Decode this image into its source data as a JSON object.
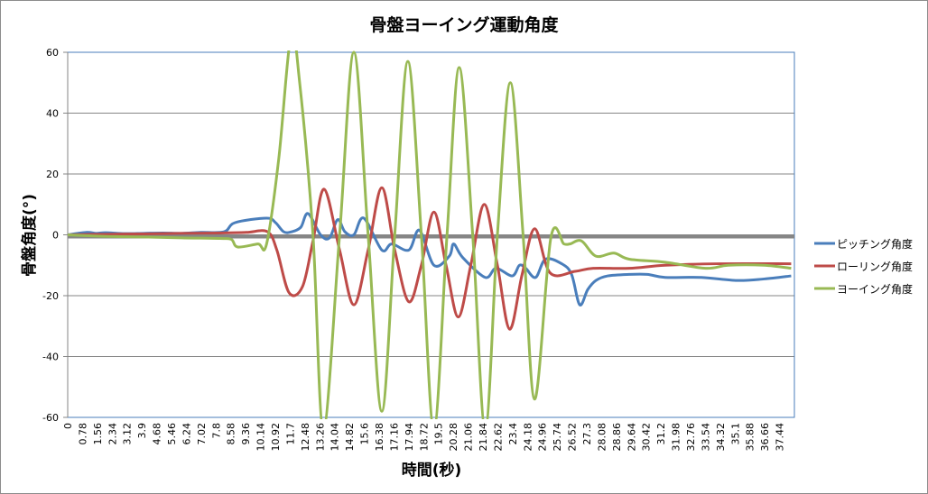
{
  "chart_data": {
    "type": "line",
    "title": "骨盤ヨーイング運動角度",
    "xlabel": "時間(秒)",
    "ylabel": "骨盤角度(°)",
    "ylim": [
      -60,
      60
    ],
    "yticks": [
      -60,
      -40,
      -20,
      0,
      20,
      40,
      60
    ],
    "xlim": [
      0,
      38.22
    ],
    "xtick_labels": [
      "0",
      "0.78",
      "1.56",
      "2.34",
      "3.12",
      "3.9",
      "4.68",
      "5.46",
      "6.24",
      "7.02",
      "7.8",
      "8.58",
      "9.36",
      "10.14",
      "10.92",
      "11.7",
      "12.48",
      "13.26",
      "14.04",
      "14.82",
      "15.6",
      "16.38",
      "17.16",
      "17.94",
      "18.72",
      "19.5",
      "20.28",
      "21.06",
      "21.84",
      "22.62",
      "23.4",
      "24.18",
      "24.96",
      "25.74",
      "26.52",
      "27.3",
      "28.08",
      "28.86",
      "29.64",
      "30.42",
      "31.2",
      "31.98",
      "32.76",
      "33.54",
      "34.32",
      "35.1",
      "35.88",
      "36.66",
      "37.44"
    ],
    "grid": true,
    "legend": "right",
    "series": [
      {
        "name": "ピッチング角度",
        "color": "#4a7ebb",
        "x": [
          0,
          1,
          1.5,
          2,
          3,
          4,
          5,
          6,
          7,
          8.23,
          8.8,
          10.46,
          10.93,
          11.36,
          11.78,
          12.26,
          12.64,
          13.3,
          13.77,
          14.2,
          14.58,
          15.05,
          15.57,
          16.52,
          17.04,
          17.94,
          18.5,
          19.26,
          20.07,
          20.3,
          20.78,
          21.96,
          22.53,
          23.38,
          23.76,
          24.09,
          24.61,
          25.13,
          25.98,
          26.5,
          26.93,
          27.35,
          27.78,
          28.4,
          29.53,
          30.48,
          31.42,
          33.32,
          35.21,
          36.63,
          38.05
        ],
        "y": [
          0,
          0.8,
          0.5,
          0.7,
          0.4,
          0.5,
          0.6,
          0.5,
          0.8,
          1,
          4,
          5.5,
          4,
          1,
          1,
          2.5,
          7,
          0,
          -1,
          5,
          1,
          0,
          5.5,
          -5,
          -3,
          -5,
          1.5,
          -10,
          -7,
          -3,
          -7.5,
          -14,
          -11,
          -13.5,
          -10,
          -11,
          -14,
          -8,
          -9.5,
          -13,
          -23,
          -18,
          -15,
          -13.5,
          -13,
          -13,
          -14,
          -14,
          -15,
          -14.5,
          -13.5
        ]
      },
      {
        "name": "ローリング角度",
        "color": "#be4b48",
        "x": [
          0,
          2,
          4,
          6,
          8,
          9.4,
          10.51,
          11.0,
          11.64,
          12.35,
          12.9,
          13.49,
          14.3,
          15.05,
          15.8,
          16.52,
          17.2,
          17.94,
          18.6,
          19.26,
          19.9,
          20.54,
          21.2,
          21.91,
          22.6,
          23.24,
          23.9,
          24.56,
          25.37,
          26.69,
          27.64,
          29.53,
          31.42,
          34.26,
          38.05
        ],
        "y": [
          0,
          0.2,
          0.3,
          0.5,
          0.6,
          0.8,
          1,
          -5,
          -19,
          -17,
          -2,
          15,
          -5,
          -23,
          -5,
          15.5,
          -5,
          -22,
          -10,
          7.5,
          -10,
          -27,
          -10,
          10,
          -10,
          -31,
          -13,
          2,
          -12.5,
          -12,
          -11,
          -11,
          -10,
          -9.5,
          -9.5
        ]
      },
      {
        "name": "ヨーイング角度",
        "color": "#98b954",
        "x": [
          0,
          2,
          4,
          6,
          8,
          8.61,
          8.94,
          10.0,
          10.46,
          11.1,
          11.75,
          12.2,
          12.9,
          13.45,
          14.3,
          15.05,
          15.8,
          16.52,
          17.2,
          17.89,
          18.6,
          19.26,
          19.95,
          20.59,
          21.3,
          21.96,
          22.6,
          23.28,
          23.95,
          24.56,
          25.41,
          26.1,
          26.41,
          27.02,
          27.78,
          28.73,
          29.53,
          31.42,
          33.55,
          34.74,
          36.63,
          38.05
        ],
        "y": [
          0,
          -0.5,
          -0.7,
          -1,
          -1.2,
          -1.5,
          -4,
          -3,
          -3,
          25,
          66,
          50,
          0,
          -64,
          0,
          60,
          0,
          -58,
          0,
          57,
          0,
          -64,
          0,
          55,
          0,
          -64,
          0,
          50,
          0,
          -54,
          -1,
          -3,
          -3,
          -2,
          -7,
          -6,
          -8,
          -9,
          -11,
          -10,
          -10,
          -11
        ]
      }
    ]
  }
}
